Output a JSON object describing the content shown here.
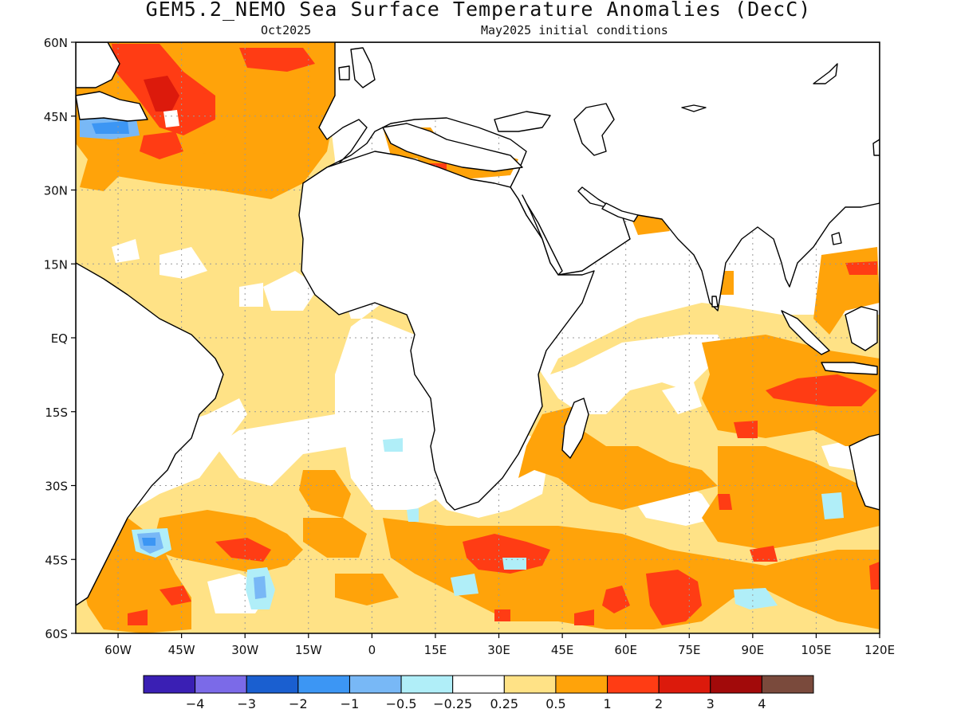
{
  "title": "GEM5.2_NEMO Sea Surface Temperature Anomalies (DecC)",
  "subtitle_left": "Oct2025",
  "subtitle_right": "May2025 initial conditions",
  "map": {
    "lon_range": [
      -70,
      120
    ],
    "lat_range": [
      -60,
      60
    ],
    "lat_ticks": [
      {
        "value": 60,
        "label": "60N"
      },
      {
        "value": 45,
        "label": "45N"
      },
      {
        "value": 30,
        "label": "30N"
      },
      {
        "value": 15,
        "label": "15N"
      },
      {
        "value": 0,
        "label": "EQ"
      },
      {
        "value": -15,
        "label": "15S"
      },
      {
        "value": -30,
        "label": "30S"
      },
      {
        "value": -45,
        "label": "45S"
      },
      {
        "value": -60,
        "label": "60S"
      }
    ],
    "lon_ticks": [
      {
        "value": -60,
        "label": "60W"
      },
      {
        "value": -45,
        "label": "45W"
      },
      {
        "value": -30,
        "label": "30W"
      },
      {
        "value": -15,
        "label": "15W"
      },
      {
        "value": 0,
        "label": "0"
      },
      {
        "value": 15,
        "label": "15E"
      },
      {
        "value": 30,
        "label": "30E"
      },
      {
        "value": 45,
        "label": "45E"
      },
      {
        "value": 60,
        "label": "60E"
      },
      {
        "value": 75,
        "label": "75E"
      },
      {
        "value": 90,
        "label": "90E"
      },
      {
        "value": 105,
        "label": "105E"
      },
      {
        "value": 120,
        "label": "120E"
      }
    ],
    "grid": true,
    "gridline_style": "dotted"
  },
  "colorbar": {
    "colors": [
      "#3a1fb4",
      "#7b6ae8",
      "#1a5fd0",
      "#3c96f4",
      "#78b8f6",
      "#b0eef8",
      "#ffffff",
      "#ffe286",
      "#ffa30a",
      "#ff3c14",
      "#dc1a0c",
      "#a20a0a",
      "#7a4a3c"
    ],
    "labels": [
      "−4",
      "−3",
      "−2",
      "−1",
      "−0.5",
      "−0.25",
      "0.25",
      "0.5",
      "1",
      "2",
      "3",
      "4"
    ]
  }
}
